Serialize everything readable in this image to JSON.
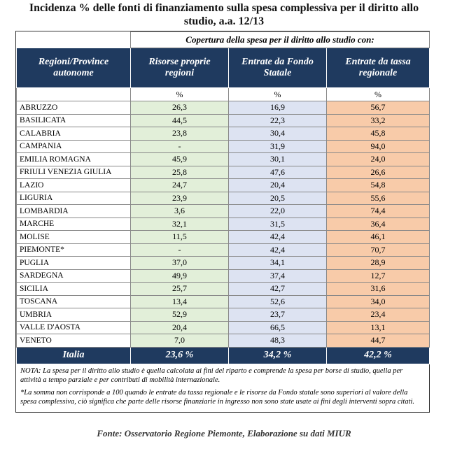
{
  "title": "Incidenza % delle fonti di finanziamento sulla spesa complessiva per il diritto allo studio, a.a. 12/13",
  "table": {
    "group_header": "Copertura della spesa per il diritto allo studio con:",
    "headers": [
      "Regioni/Province autonome",
      "Risorse proprie regioni",
      "Entrate da Fondo Statale",
      "Entrate da tassa regionale"
    ],
    "units": [
      "%",
      "%",
      "%"
    ],
    "rows": [
      [
        "ABRUZZO",
        "26,3",
        "16,9",
        "56,7"
      ],
      [
        "BASILICATA",
        "44,5",
        "22,3",
        "33,2"
      ],
      [
        "CALABRIA",
        "23,8",
        "30,4",
        "45,8"
      ],
      [
        "CAMPANIA",
        "-",
        "31,9",
        "94,0"
      ],
      [
        "EMILIA ROMAGNA",
        "45,9",
        "30,1",
        "24,0"
      ],
      [
        "FRIULI VENEZIA GIULIA",
        "25,8",
        "47,6",
        "26,6"
      ],
      [
        "LAZIO",
        "24,7",
        "20,4",
        "54,8"
      ],
      [
        "LIGURIA",
        "23,9",
        "20,5",
        "55,6"
      ],
      [
        "LOMBARDIA",
        "3,6",
        "22,0",
        "74,4"
      ],
      [
        "MARCHE",
        "32,1",
        "31,5",
        "36,4"
      ],
      [
        "MOLISE",
        "11,5",
        "42,4",
        "46,1"
      ],
      [
        "PIEMONTE*",
        "-",
        "42,4",
        "70,7"
      ],
      [
        "PUGLIA",
        "37,0",
        "34,1",
        "28,9"
      ],
      [
        "SARDEGNA",
        "49,9",
        "37,4",
        "12,7"
      ],
      [
        "SICILIA",
        "25,7",
        "42,7",
        "31,6"
      ],
      [
        "TOSCANA",
        "13,4",
        "52,6",
        "34,0"
      ],
      [
        "UMBRIA",
        "52,9",
        "23,7",
        "23,4"
      ],
      [
        "VALLE D'AOSTA",
        "20,4",
        "66,5",
        "13,1"
      ],
      [
        "VENETO",
        "7,0",
        "48,3",
        "44,7"
      ]
    ],
    "total": [
      "Italia",
      "23,6 %",
      "34,2 %",
      "42,2 %"
    ]
  },
  "notes": [
    "NOTA: La spesa per il diritto allo studio è quella calcolata ai fini del riparto e comprende la spesa per borse di studio, quella per attività a tempo parziale e per contributi di mobilità internazionale.",
    "*La somma non corrisponde a 100 quando le entrate da tassa regionale e le risorse da Fondo statale sono superiori al valore della spesa complessiva, ciò significa che parte delle risorse finanziarie in ingresso non sono state usate ai fini degli interventi sopra citati."
  ],
  "source": "Fonte: Osservatorio Regione Piemonte, Elaborazione su dati MIUR"
}
